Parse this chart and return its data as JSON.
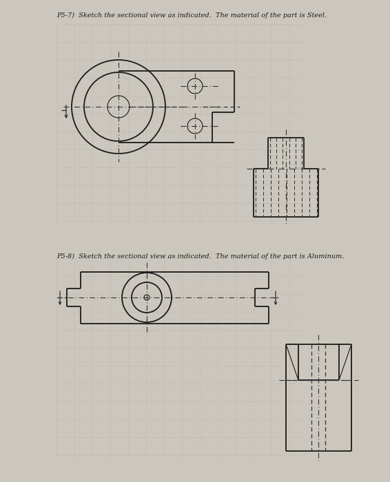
{
  "bg_color": "#cbc7be",
  "line_color": "#1a1a1a",
  "dash_color": "#333333",
  "grid_color": "#adadA0",
  "center_color": "#333333",
  "title1": "P5-7)  Sketch the sectional view as indicated.  The material of the part is Steel.",
  "title2": "P5-8)  Sketch the sectional view as indicated.  The material of the part is Aluminum.",
  "title_fontsize": 7.0,
  "fig_bg": "#cbc7be"
}
